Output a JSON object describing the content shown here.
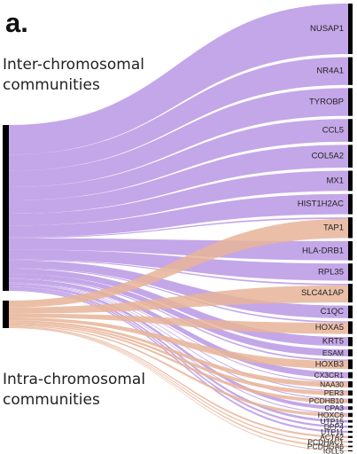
{
  "panel_letter": "a.",
  "sources": [
    {
      "key": "inter",
      "lines": [
        "Inter-chromosomal",
        "communities"
      ]
    },
    {
      "key": "intra",
      "lines": [
        "Intra-chromosomal",
        "communities"
      ]
    }
  ],
  "colors": {
    "inter": "#bfa0e6",
    "intra": "#e7b498",
    "bar": "#000000",
    "text": "#222222"
  },
  "targets": [
    {
      "label": "NUSAP1",
      "inter": 1.0,
      "intra": 0.0
    },
    {
      "label": "NR4A1",
      "inter": 0.55,
      "intra": 0.0
    },
    {
      "label": "TYROBP",
      "inter": 0.55,
      "intra": 0.0
    },
    {
      "label": "CCL5",
      "inter": 0.45,
      "intra": 0.0
    },
    {
      "label": "COL5A2",
      "inter": 0.45,
      "intra": 0.0
    },
    {
      "label": "MX1",
      "inter": 0.4,
      "intra": 0.0
    },
    {
      "label": "HIST1H2AC",
      "inter": 0.4,
      "intra": 0.0
    },
    {
      "label": "TAP1",
      "inter": 0.03,
      "intra": 0.38
    },
    {
      "label": "HLA-DRB1",
      "inter": 0.38,
      "intra": 0.0
    },
    {
      "label": "RPL35",
      "inter": 0.34,
      "intra": 0.0
    },
    {
      "label": "SLC4A1AP",
      "inter": 0.03,
      "intra": 0.34
    },
    {
      "label": "C1QC",
      "inter": 0.25,
      "intra": 0.0
    },
    {
      "label": "HOXA5",
      "inter": 0.03,
      "intra": 0.22
    },
    {
      "label": "KRT5",
      "inter": 0.18,
      "intra": 0.0
    },
    {
      "label": "ESAM",
      "inter": 0.14,
      "intra": 0.0
    },
    {
      "label": "HOXB3",
      "inter": 0.03,
      "intra": 0.16
    },
    {
      "label": "CX3CR1",
      "inter": 0.12,
      "intra": 0.0
    },
    {
      "label": "NAA30",
      "inter": 0.02,
      "intra": 0.1
    },
    {
      "label": "PER3",
      "inter": 0.02,
      "intra": 0.08
    },
    {
      "label": "PCDHB10",
      "inter": 0.02,
      "intra": 0.07
    },
    {
      "label": "CPA3",
      "inter": 0.07,
      "intra": 0.0
    },
    {
      "label": "HOXC6",
      "inter": 0.02,
      "intra": 0.06
    },
    {
      "label": "UTP15",
      "inter": 0.05,
      "intra": 0.0
    },
    {
      "label": "DPP4",
      "inter": 0.04,
      "intra": 0.0
    },
    {
      "label": "UTP11",
      "inter": 0.04,
      "intra": 0.0
    },
    {
      "label": "ACTA2",
      "inter": 0.0,
      "intra": 0.04
    },
    {
      "label": "PCDHAC1",
      "inter": 0.0,
      "intra": 0.03
    },
    {
      "label": "PCDHGA6",
      "inter": 0.0,
      "intra": 0.03
    },
    {
      "label": "IGLL5",
      "inter": 0.0,
      "intra": 0.02
    }
  ]
}
